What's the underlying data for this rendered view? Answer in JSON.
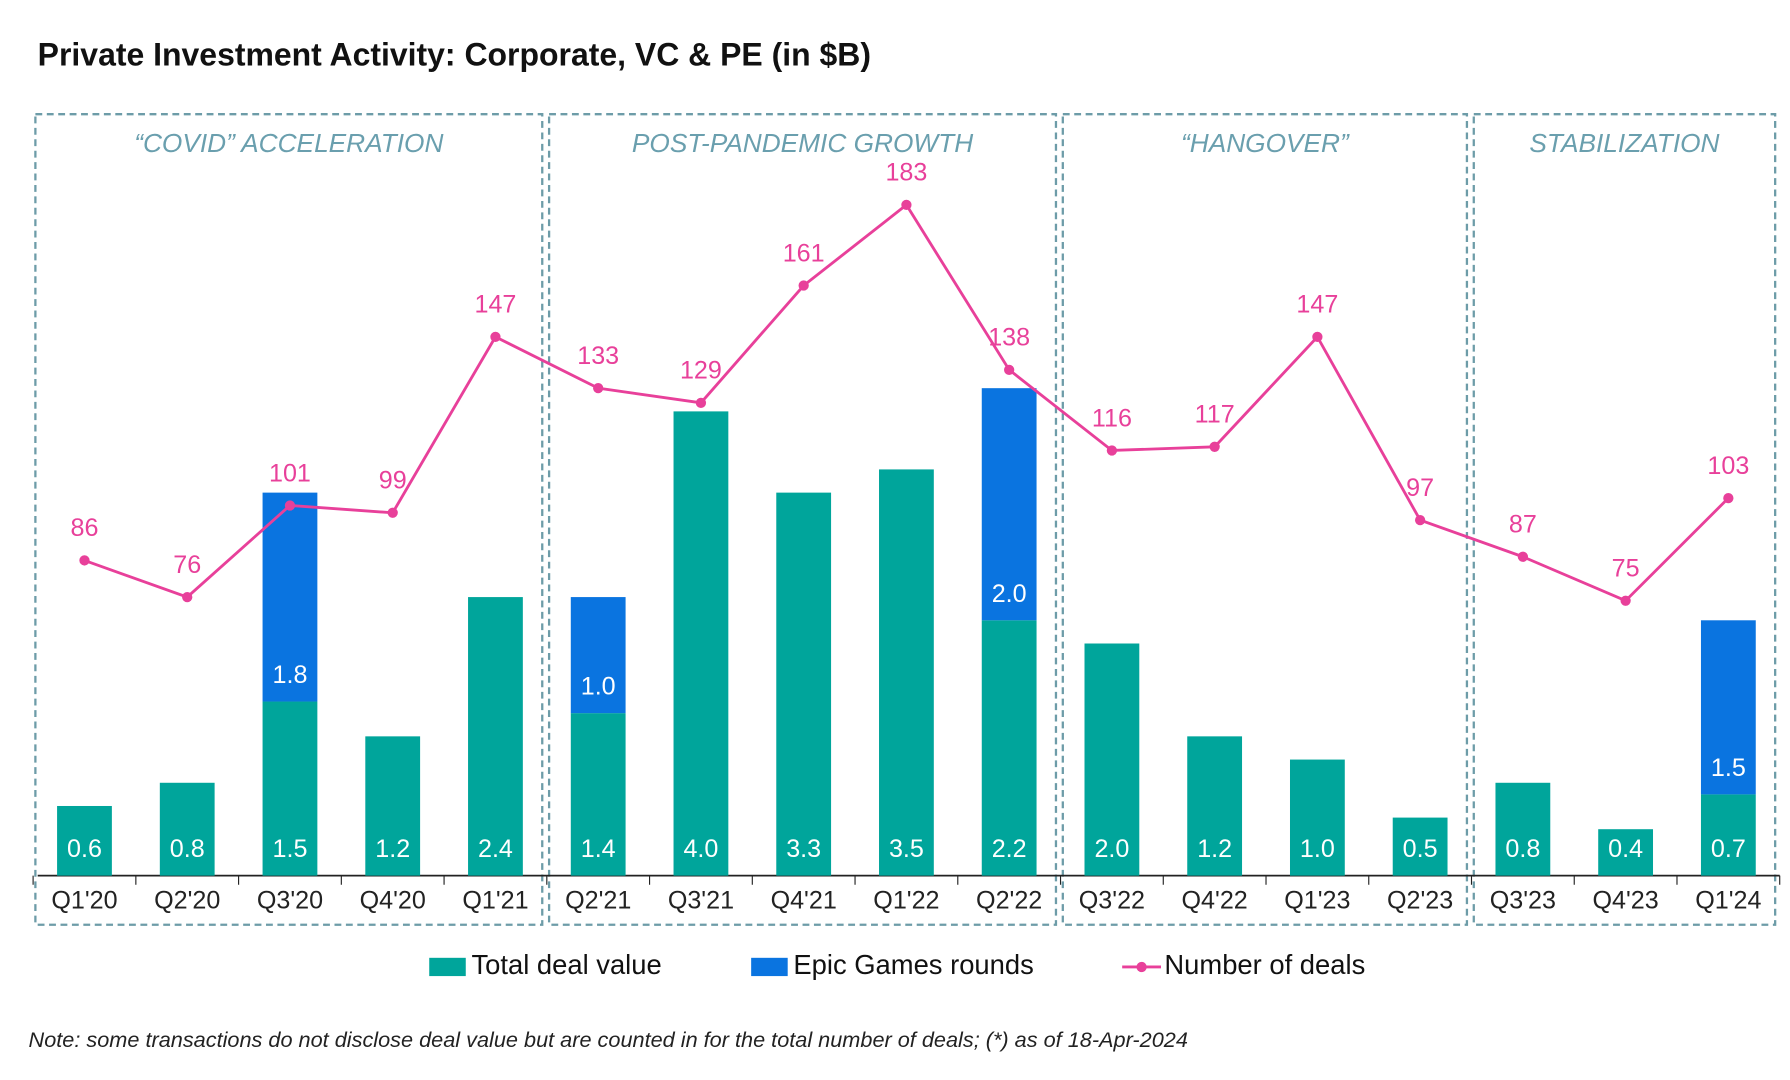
{
  "chart_data": {
    "type": "bar",
    "title": "Private Investment Activity: Corporate, VC & PE (in $B)",
    "note": "Note: some transactions do not disclose deal value but are counted in for the total number of deals; (*) as of 18-Apr-2024",
    "categories": [
      "Q1'20",
      "Q2'20",
      "Q3'20",
      "Q4'20",
      "Q1'21",
      "Q2'21",
      "Q3'21",
      "Q4'21",
      "Q1'22",
      "Q2'22",
      "Q3'22",
      "Q4'22",
      "Q1'23",
      "Q2'23",
      "Q3'23",
      "Q4'23",
      "Q1'24"
    ],
    "groups": [
      {
        "label": "“COVID” ACCELERATION",
        "count": 5
      },
      {
        "label": "POST-PANDEMIC GROWTH",
        "count": 5
      },
      {
        "label": "“HANGOVER”",
        "count": 4
      },
      {
        "label": "STABILIZATION",
        "count": 3
      }
    ],
    "series": [
      {
        "name": "Total deal value",
        "type": "bar",
        "color": "#00a59b",
        "values": [
          0.6,
          0.8,
          1.5,
          1.2,
          2.4,
          1.4,
          4.0,
          3.3,
          3.5,
          2.2,
          2.0,
          1.2,
          1.0,
          0.5,
          0.8,
          0.4,
          0.7
        ],
        "value_labels": [
          "0.6",
          "0.8",
          "1.5",
          "1.2",
          "2.4",
          "1.4",
          "4.0",
          "3.3",
          "3.5",
          "2.2",
          "2.0",
          "1.2",
          "1.0",
          "0.5",
          "0.8",
          "0.4",
          "0.7"
        ]
      },
      {
        "name": "Epic Games rounds",
        "type": "bar",
        "color": "#0a74e0",
        "values": [
          null,
          null,
          1.8,
          null,
          null,
          1.0,
          null,
          null,
          null,
          2.0,
          null,
          null,
          null,
          null,
          null,
          null,
          1.5
        ],
        "value_labels": [
          null,
          null,
          "1.8",
          null,
          null,
          "1.0",
          null,
          null,
          null,
          "2.0",
          null,
          null,
          null,
          null,
          null,
          null,
          "1.5"
        ]
      },
      {
        "name": "Number of deals",
        "type": "line",
        "axis": "y2",
        "color": "#e8409a",
        "values": [
          86,
          76,
          101,
          99,
          147,
          133,
          129,
          161,
          183,
          138,
          116,
          117,
          147,
          97,
          87,
          75,
          103
        ]
      }
    ],
    "stacked": true,
    "ylim": [
      0,
      6
    ],
    "y2lim": [
      0,
      190
    ]
  }
}
